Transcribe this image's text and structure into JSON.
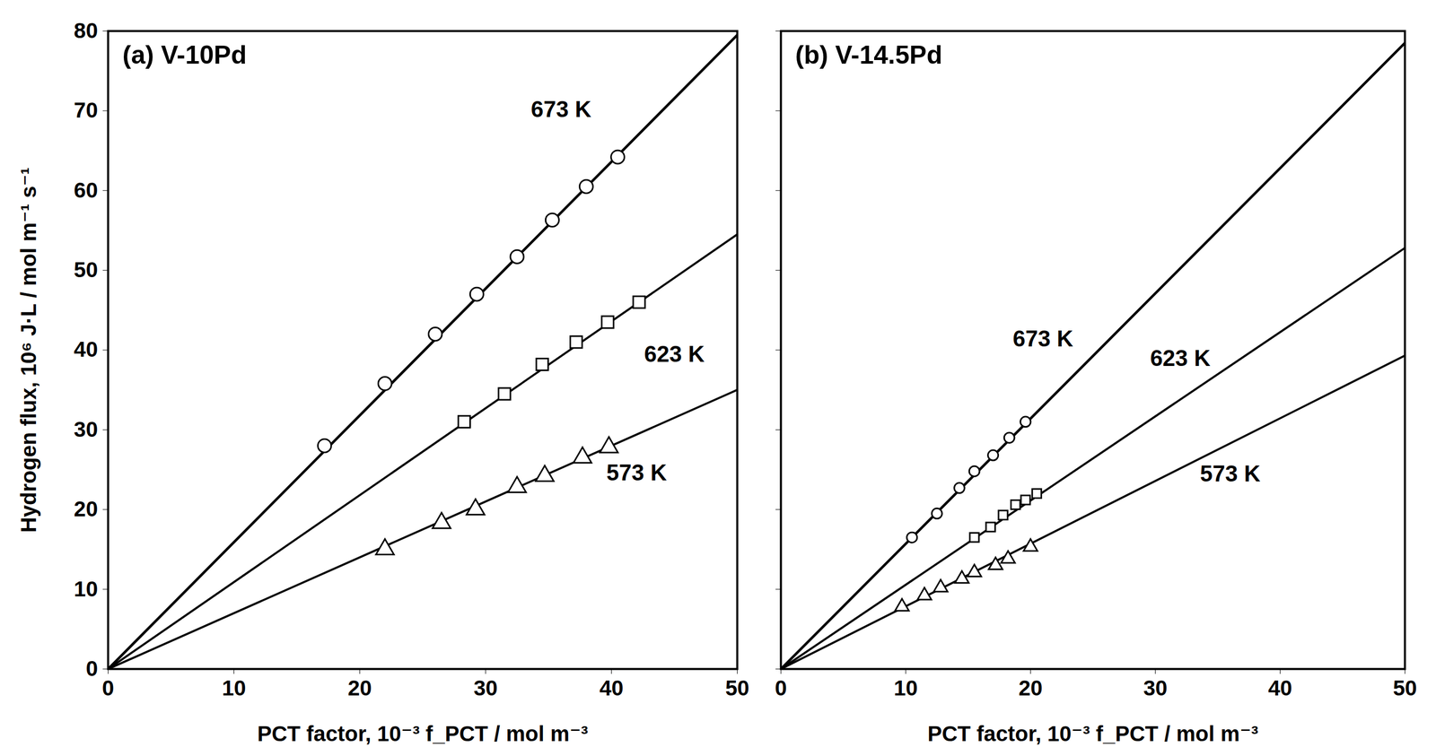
{
  "chart_data": [
    {
      "type": "scatter",
      "title": "(a) V-10Pd",
      "x_label": "PCT factor, 10⁻³ f_PCT / mol m⁻³",
      "y_label": "Hydrogen flux, 10⁶ J·L / mol m⁻¹ s⁻¹",
      "xlim": [
        0,
        50
      ],
      "xticks": [
        0,
        10,
        20,
        30,
        40,
        50
      ],
      "ylim": [
        0,
        80
      ],
      "yticks": [
        0,
        10,
        20,
        30,
        40,
        50,
        60,
        70,
        80
      ],
      "grid": false,
      "series": [
        {
          "name": "673 K",
          "color": "#000000",
          "marker": "circle",
          "x": [
            17.2,
            22,
            26,
            29.3,
            32.5,
            35.3,
            38,
            40.5
          ],
          "values": [
            28,
            35.8,
            42,
            47,
            51.7,
            56.3,
            60.5,
            64.2
          ],
          "fit_x": [
            0,
            50
          ],
          "fit_values": [
            0,
            79.5
          ]
        },
        {
          "name": "623 K",
          "color": "#000000",
          "marker": "square",
          "x": [
            28.3,
            31.5,
            34.5,
            37.2,
            39.7,
            42.2
          ],
          "values": [
            31,
            34.5,
            38.2,
            41,
            43.5,
            46
          ],
          "fit_x": [
            0,
            50
          ],
          "fit_values": [
            0,
            54.5
          ]
        },
        {
          "name": "573 K",
          "color": "#000000",
          "marker": "triangle",
          "x": [
            22,
            26.5,
            29.2,
            32.5,
            34.7,
            37.7,
            39.8
          ],
          "values": [
            15,
            18.3,
            20,
            22.8,
            24.2,
            26.5,
            27.8
          ],
          "fit_x": [
            0,
            50
          ],
          "fit_values": [
            0,
            35
          ]
        }
      ]
    },
    {
      "type": "scatter",
      "title": "(b) V-14.5Pd",
      "x_label": "PCT factor, 10⁻³ f_PCT / mol m⁻³",
      "xlim": [
        0,
        50
      ],
      "xticks": [
        0,
        10,
        20,
        30,
        40,
        50
      ],
      "ylim": [
        0,
        80
      ],
      "yticks": [
        0,
        10,
        20,
        30,
        40,
        50,
        60,
        70,
        80
      ],
      "grid": false,
      "tick_labels": "x",
      "series": [
        {
          "name": "673 K",
          "color": "#000000",
          "marker": "circle",
          "x": [
            10.5,
            12.5,
            14.3,
            15.5,
            17,
            18.3,
            19.6
          ],
          "values": [
            16.5,
            19.5,
            22.7,
            24.8,
            26.8,
            29,
            31
          ],
          "fit_x": [
            0,
            50
          ],
          "fit_values": [
            0,
            78.5
          ]
        },
        {
          "name": "623 K",
          "color": "#000000",
          "marker": "square",
          "x": [
            15.5,
            16.8,
            17.8,
            18.8,
            19.6,
            20.5
          ],
          "values": [
            16.5,
            17.8,
            19.3,
            20.6,
            21.2,
            22
          ],
          "fit_x": [
            0,
            50
          ],
          "fit_values": [
            0,
            52.8
          ]
        },
        {
          "name": "573 K",
          "color": "#000000",
          "marker": "triangle",
          "x": [
            9.7,
            11.5,
            12.8,
            14.5,
            15.5,
            17.2,
            18.2,
            20
          ],
          "values": [
            7.8,
            9.2,
            10.2,
            11.3,
            12.1,
            13,
            13.8,
            15.3
          ],
          "fit_x": [
            0,
            50
          ],
          "fit_values": [
            0,
            39.3
          ]
        }
      ]
    }
  ]
}
